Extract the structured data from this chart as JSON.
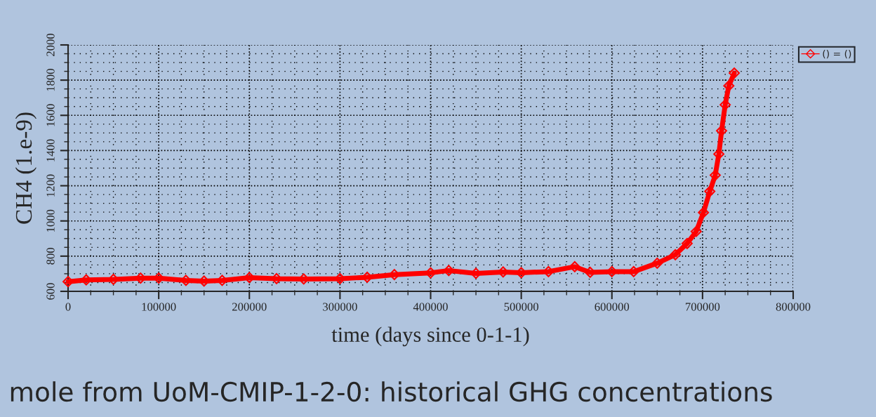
{
  "chart_data": {
    "type": "line",
    "ylabel": "CH4 (1.e-9)",
    "xlabel": "time (days since 0-1-1)",
    "annotations": [
      "mole from UoM-CMIP-1-2-0: historical GHG concentrations"
    ],
    "series": [
      {
        "name": "() = ()",
        "color": "#ff0000",
        "x": [
          0,
          20000,
          50000,
          80000,
          100000,
          130000,
          150000,
          170000,
          200000,
          230000,
          260000,
          300000,
          330000,
          360000,
          400000,
          420000,
          450000,
          480000,
          500000,
          530000,
          559000,
          576000,
          600000,
          624000,
          650000,
          670000,
          683000,
          693000,
          701000,
          708000,
          714000,
          718000,
          721000,
          725000,
          729000,
          735000
        ],
        "values": [
          655,
          665,
          668,
          675,
          675,
          662,
          658,
          662,
          678,
          672,
          670,
          672,
          680,
          695,
          705,
          718,
          702,
          710,
          706,
          712,
          740,
          708,
          712,
          712,
          760,
          808,
          872,
          940,
          1048,
          1168,
          1260,
          1380,
          1512,
          1660,
          1768,
          1840
        ]
      }
    ],
    "xlim": [
      0,
      800000
    ],
    "xticks": [
      0,
      100000,
      200000,
      300000,
      400000,
      500000,
      600000,
      700000,
      800000
    ],
    "ylim": [
      600,
      2000
    ],
    "yticks": [
      600,
      800,
      1000,
      1200,
      1400,
      1600,
      1800,
      2000
    ],
    "grid": true,
    "legend": "top right",
    "marker": "diamond",
    "line_style": "solid"
  }
}
